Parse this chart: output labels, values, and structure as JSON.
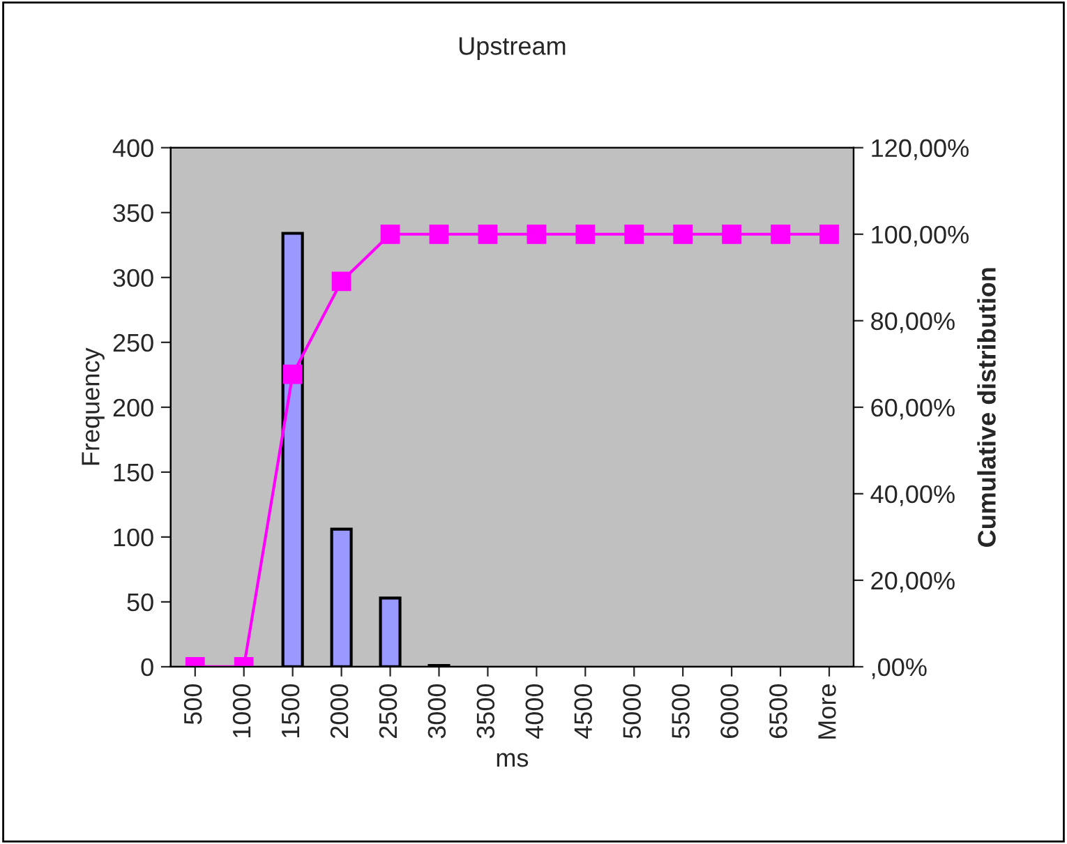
{
  "chart_data": {
    "type": "bar",
    "title": "Upstream",
    "xlabel": "ms",
    "ylabel": "Frequency",
    "y2label": "Cumulative distribution",
    "categories": [
      "500",
      "1000",
      "1500",
      "2000",
      "2500",
      "3000",
      "3500",
      "4000",
      "4500",
      "5000",
      "5500",
      "6000",
      "6500",
      "More"
    ],
    "series": [
      {
        "color": "#9999ff",
        "values": [
          0,
          0,
          334,
          106,
          53,
          1,
          0,
          0,
          0,
          0,
          0,
          0,
          0,
          0
        ]
      },
      {
        "type": "line",
        "axis": "y2",
        "color": "#ff00ff",
        "marker": "square",
        "line_style": "solid",
        "values": [
          0,
          0,
          67.6,
          89.1,
          100,
          100,
          100,
          100,
          100,
          100,
          100,
          100,
          100,
          100
        ]
      }
    ],
    "ylim": [
      0,
      400
    ],
    "yticks": [
      0,
      50,
      100,
      150,
      200,
      250,
      300,
      350,
      400
    ],
    "y2lim": [
      0,
      120
    ],
    "y2ticks": [
      {
        "value": 0,
        "label": ",00%"
      },
      {
        "value": 20,
        "label": "20,00%"
      },
      {
        "value": 40,
        "label": "40,00%"
      },
      {
        "value": 60,
        "label": "60,00%"
      },
      {
        "value": 80,
        "label": "80,00%"
      },
      {
        "value": 100,
        "label": "100,00%"
      },
      {
        "value": 120,
        "label": "120,00%"
      }
    ],
    "grid": false,
    "legend": false
  }
}
